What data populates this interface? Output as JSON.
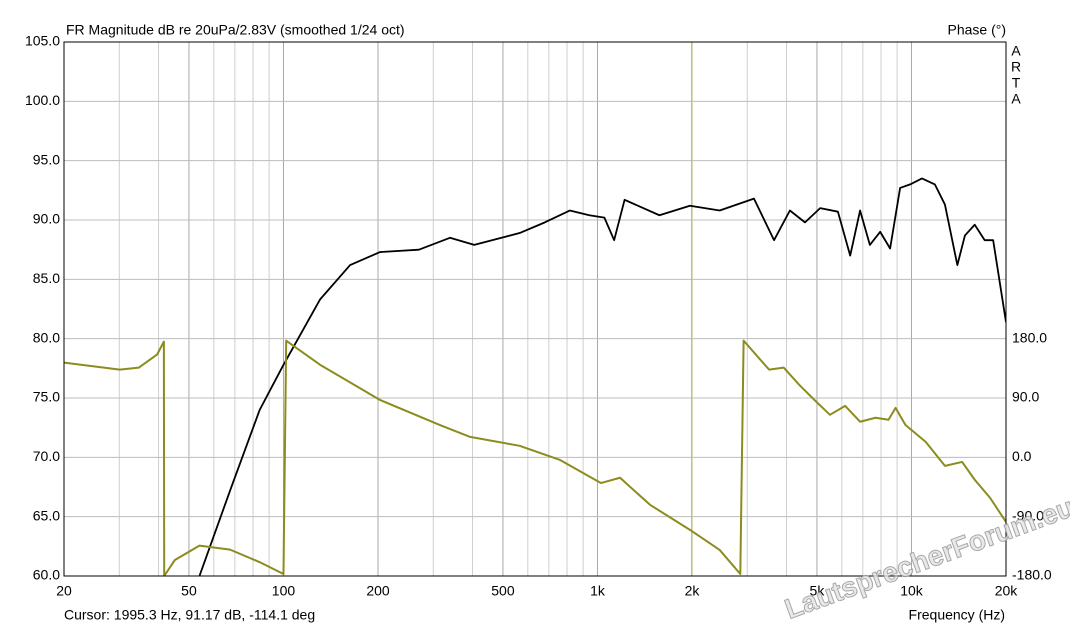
{
  "chart_data": {
    "type": "line",
    "title": "FR Magnitude dB re 20uPa/2.83V (smoothed 1/24 oct)",
    "y2_title": "Phase (°)",
    "x_label": "Frequency (Hz)",
    "side_label": [
      "A",
      "R",
      "T",
      "A"
    ],
    "watermark": "LautsprecherForum.eu",
    "cursor": {
      "label": "Cursor: 1995.3 Hz, 91.17 dB, -114.1 deg",
      "x": 1995.3,
      "color": "#b4cc3c"
    },
    "log_x": true,
    "grid": true,
    "xlim": [
      20,
      20000
    ],
    "xticks": [
      20,
      50,
      100,
      200,
      500,
      {
        "value": 1000,
        "label": "1k"
      },
      {
        "value": 2000,
        "label": "2k"
      },
      {
        "value": 5000,
        "label": "5k"
      },
      {
        "value": 10000,
        "label": "10k"
      },
      {
        "value": 20000,
        "label": "20k"
      }
    ],
    "xminor": [
      30,
      40,
      60,
      70,
      80,
      90,
      300,
      400,
      600,
      700,
      800,
      900,
      3000,
      4000,
      6000,
      7000,
      8000,
      9000
    ],
    "ylim": [
      60,
      105
    ],
    "yticks": [
      {
        "value": 60,
        "label": "60.0"
      },
      {
        "value": 65,
        "label": "65.0"
      },
      {
        "value": 70,
        "label": "70.0"
      },
      {
        "value": 75,
        "label": "75.0"
      },
      {
        "value": 80,
        "label": "80.0"
      },
      {
        "value": 85,
        "label": "85.0"
      },
      {
        "value": 90,
        "label": "90.0"
      },
      {
        "value": 95,
        "label": "95.0"
      },
      {
        "value": 100,
        "label": "100.0"
      },
      {
        "value": 105,
        "label": "105.0"
      }
    ],
    "y2lim": [
      -180,
      630
    ],
    "y2ticks": [
      {
        "value": -180,
        "label": "-180.0"
      },
      {
        "value": -90,
        "label": "-90.0"
      },
      {
        "value": 0,
        "label": "0.0"
      },
      {
        "value": 90,
        "label": "90.0"
      },
      {
        "value": 180,
        "label": "180.0"
      }
    ],
    "series": [
      {
        "color": "#000000",
        "axis": "y",
        "x": [
          54,
          67.6,
          84,
          100,
          130.7,
          163,
          203,
          270,
          339,
          405,
          565,
          680,
          816,
          942,
          1052,
          1130,
          1220,
          1575,
          1970,
          2450,
          3150,
          3650,
          4100,
          4580,
          5120,
          5830,
          6380,
          6860,
          7370,
          7950,
          8550,
          9200,
          9900,
          10800,
          11870,
          12780,
          14000,
          14800,
          15900,
          17100,
          18200,
          20000
        ],
        "values": [
          60,
          67.2,
          74,
          77.8,
          83.3,
          86.2,
          87.3,
          87.5,
          88.5,
          87.9,
          88.9,
          89.8,
          90.8,
          90.4,
          90.2,
          88.3,
          91.7,
          90.4,
          91.2,
          90.8,
          91.8,
          88.3,
          90.8,
          89.8,
          91.0,
          90.7,
          87.0,
          90.8,
          87.9,
          89.0,
          87.6,
          92.7,
          93.0,
          93.5,
          93.0,
          91.3,
          86.2,
          88.7,
          89.6,
          88.3,
          88.3,
          81.4
        ]
      },
      {
        "color": "#8c8c1e",
        "axis": "y2",
        "x": [
          20,
          30.1,
          34.6,
          39.6,
          41.6,
          41.7,
          45.1,
          54,
          67.6,
          84,
          100,
          102,
          130.7,
          203,
          315,
          393,
          565,
          760,
          1025,
          1180,
          1470,
          1970,
          2450,
          2850,
          2920,
          3520,
          3920,
          4390,
          4910,
          5500,
          6150,
          6860,
          7680,
          8450,
          8900,
          9570,
          11100,
          12780,
          14500,
          15900,
          17800,
          20000
        ],
        "values": [
          143.6,
          133,
          136,
          156,
          175.5,
          -180,
          -155.7,
          -134,
          -140,
          -159,
          -177,
          177,
          140.5,
          87,
          49,
          31,
          17.5,
          -4,
          -39,
          -31,
          -72,
          -110,
          -140.5,
          -177,
          177,
          133,
          136,
          110,
          87,
          64.5,
          78,
          54,
          60,
          57,
          75,
          49,
          23.5,
          -13,
          -7,
          -34,
          -61.5,
          -98
        ]
      }
    ]
  }
}
